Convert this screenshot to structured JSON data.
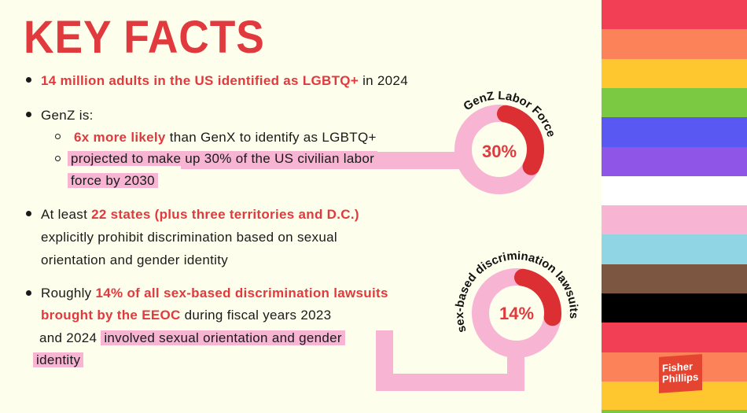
{
  "title": "KEY FACTS",
  "facts": {
    "f1": {
      "red": "14 million adults in the US identified as LGBTQ+",
      "rest": " in 2024"
    },
    "f2": {
      "lead": "GenZ is:",
      "s1_red": "6x more likely",
      "s1_rest": " than GenX to identify as LGBTQ+",
      "s2_line1": "projected to make up 30% of the US civilian labor",
      "s2_line2": "force by 2030"
    },
    "f3": {
      "lead": "At least ",
      "red": "22 states (plus three territories and D.C.)",
      "line2": "explicitly prohibit discrimination based on sexual",
      "line3": "orientation and gender identity"
    },
    "f4": {
      "lead": "Roughly ",
      "red1": "14% of all sex-based discrimination lawsuits",
      "red2": "brought by the EEOC",
      "rest2": " during fiscal years 2023",
      "line3a": "and 2024 ",
      "line3b": "involved sexual orientation and gender",
      "line4": "identity"
    }
  },
  "donuts": [
    {
      "label": "GenZ Labor Force",
      "value_text": "30%",
      "percent": 30
    },
    {
      "label": "sex-based discrimination lawsuits",
      "value_text": "14%",
      "percent": 14
    }
  ],
  "colors": {
    "accent": "#e03a3e",
    "pink": "#f7b4d3",
    "background": "#fefeec"
  },
  "stripes": [
    "#f33f55",
    "#fb8259",
    "#ffc72f",
    "#7bc843",
    "#5a58f2",
    "#8e55e6",
    "#ffffff",
    "#f7b4d3",
    "#8fd5e4",
    "#7d5641",
    "#000000",
    "#f33f55",
    "#fb8259",
    "#ffc72f"
  ],
  "logo": {
    "line1": "Fisher",
    "line2": "Phillips"
  }
}
